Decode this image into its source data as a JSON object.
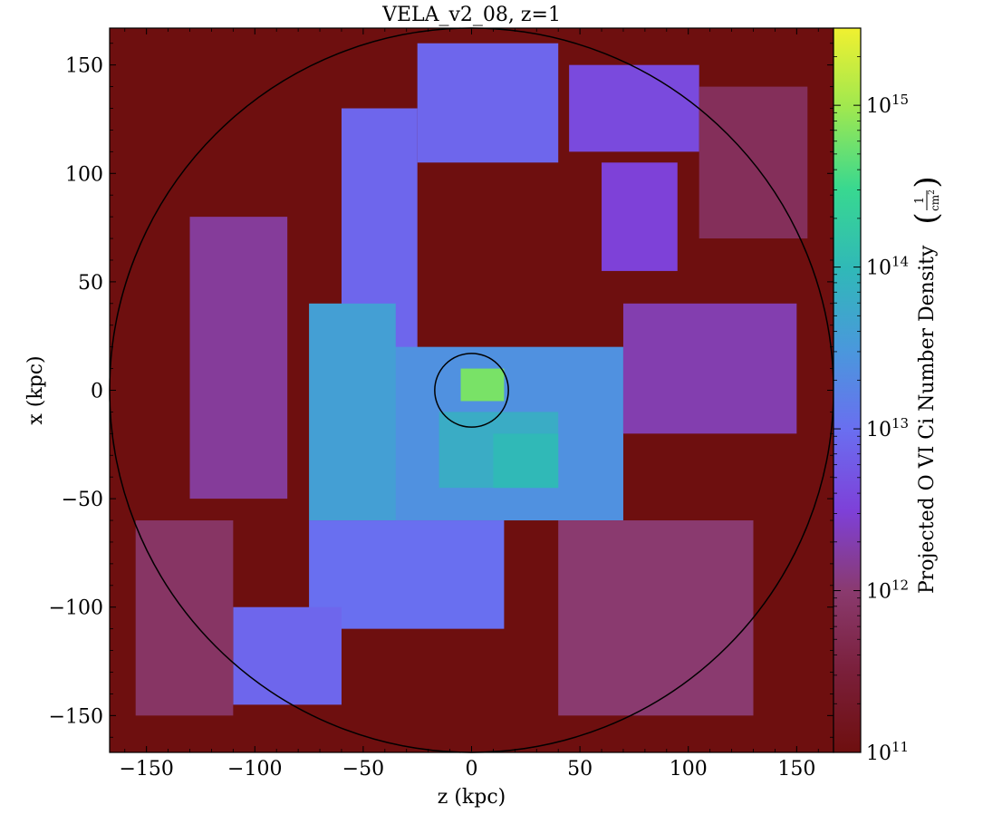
{
  "chart_data": {
    "type": "heatmap",
    "title": "VELA_v2_08, z=1",
    "xlabel": "z  (kpc)",
    "ylabel": "x  (kpc)",
    "xlim": [
      -167,
      167
    ],
    "ylim": [
      -167,
      167
    ],
    "x_ticks": [
      -150,
      -100,
      -50,
      0,
      50,
      100,
      150
    ],
    "y_ticks": [
      -150,
      -100,
      -50,
      0,
      50,
      100,
      150
    ],
    "x_tick_labels": [
      "−150",
      "−100",
      "−50",
      "0",
      "50",
      "100",
      "150"
    ],
    "y_tick_labels": [
      "−150",
      "−100",
      "−50",
      "0",
      "50",
      "100",
      "150"
    ],
    "colorbar": {
      "label": "Projected O VI Ci Number Density",
      "unit_numerator": "1",
      "unit_denominator": "cm",
      "unit_exponent": "2",
      "scale": "log",
      "range": [
        100000000000.0,
        3000000000000000.0
      ],
      "ticks": [
        {
          "base": "10",
          "exp": "11",
          "value": 100000000000.0
        },
        {
          "base": "10",
          "exp": "12",
          "value": 1000000000000.0
        },
        {
          "base": "10",
          "exp": "13",
          "value": 10000000000000.0
        },
        {
          "base": "10",
          "exp": "14",
          "value": 100000000000000.0
        },
        {
          "base": "10",
          "exp": "15",
          "value": 1000000000000000.0
        }
      ],
      "colormap_stops": [
        "#6e0f0f",
        "#7a1f3a",
        "#8a3a6e",
        "#7e40d8",
        "#6a6ef0",
        "#4a98dc",
        "#30b8b8",
        "#38d890",
        "#9ee850",
        "#f0f030"
      ]
    },
    "circles_kpc": [
      {
        "center": [
          0,
          0
        ],
        "radius": 167
      },
      {
        "center": [
          0,
          0
        ],
        "radius": 17
      }
    ],
    "background_color": "#6e0f0f",
    "regions_logN": [
      {
        "z": [
          -25,
          40
        ],
        "x": [
          105,
          160
        ],
        "logN": 12.9
      },
      {
        "z": [
          45,
          105
        ],
        "x": [
          110,
          150
        ],
        "logN": 12.6
      },
      {
        "z": [
          105,
          155
        ],
        "x": [
          70,
          140
        ],
        "logN": 11.8
      },
      {
        "z": [
          60,
          95
        ],
        "x": [
          55,
          105
        ],
        "logN": 12.5
      },
      {
        "z": [
          -60,
          -25
        ],
        "x": [
          -10,
          130
        ],
        "logN": 12.9
      },
      {
        "z": [
          -40,
          70
        ],
        "x": [
          -60,
          20
        ],
        "logN": 13.4
      },
      {
        "z": [
          -75,
          -35
        ],
        "x": [
          -60,
          40
        ],
        "logN": 13.6
      },
      {
        "z": [
          -15,
          40
        ],
        "x": [
          -45,
          -10
        ],
        "logN": 13.8
      },
      {
        "z": [
          10,
          40
        ],
        "x": [
          -45,
          -20
        ],
        "logN": 14.0
      },
      {
        "z": [
          -75,
          15
        ],
        "x": [
          -110,
          -60
        ],
        "logN": 13.0
      },
      {
        "z": [
          -110,
          -60
        ],
        "x": [
          -145,
          -100
        ],
        "logN": 12.9
      },
      {
        "z": [
          70,
          150
        ],
        "x": [
          -20,
          40
        ],
        "logN": 12.3
      },
      {
        "z": [
          -130,
          -85
        ],
        "x": [
          -50,
          80
        ],
        "logN": 12.2
      },
      {
        "z": [
          -155,
          -110
        ],
        "x": [
          -150,
          -60
        ],
        "logN": 11.9
      },
      {
        "z": [
          40,
          130
        ],
        "x": [
          -150,
          -60
        ],
        "logN": 12.0
      },
      {
        "z": [
          -5,
          15
        ],
        "x": [
          -5,
          10
        ],
        "logN": 14.8
      }
    ]
  }
}
